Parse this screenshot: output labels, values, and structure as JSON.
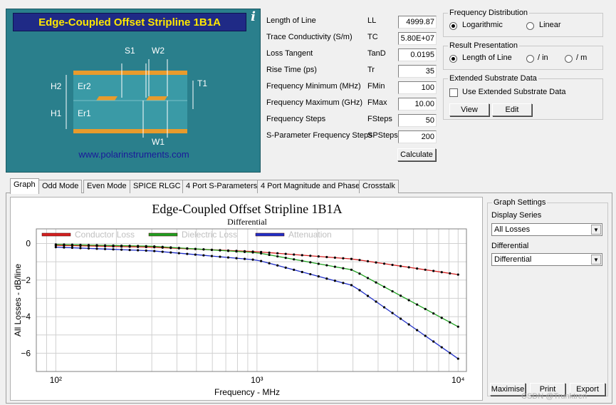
{
  "diagram": {
    "title": "Edge-Coupled Offset Stripline 1B1A",
    "info_glyph": "i",
    "url": "www.polarinstruments.com",
    "labels": {
      "s1": "S1",
      "w2": "W2",
      "t1": "T1",
      "h2": "H2",
      "er2": "Er2",
      "h1": "H1",
      "er1": "Er1",
      "w1": "W1"
    }
  },
  "params": [
    {
      "label": "Length of Line",
      "code": "LL",
      "value": "4999.87"
    },
    {
      "label": "Trace Conductivity (S/m)",
      "code": "TC",
      "value": "5.80E+07"
    },
    {
      "label": "Loss Tangent",
      "code": "TanD",
      "value": "0.0195"
    },
    {
      "label": "Rise Time (ps)",
      "code": "Tr",
      "value": "35"
    },
    {
      "label": "Frequency Minimum (MHz)",
      "code": "FMin",
      "value": "100"
    },
    {
      "label": "Frequency Maximum (GHz)",
      "code": "FMax",
      "value": "10.00"
    },
    {
      "label": "Frequency Steps",
      "code": "FSteps",
      "value": "50"
    },
    {
      "label": "S-Parameter Frequency Steps",
      "code": "SPSteps",
      "value": "200"
    }
  ],
  "calculate_label": "Calculate",
  "freq_distribution": {
    "title": "Frequency Distribution",
    "options": [
      "Logarithmic",
      "Linear"
    ],
    "selected": "Logarithmic"
  },
  "result_presentation": {
    "title": "Result Presentation",
    "options": [
      "Length of Line",
      "/ in",
      "/ m"
    ],
    "selected": "Length of Line"
  },
  "extended_substrate": {
    "title": "Extended Substrate Data",
    "checkbox_label": "Use Extended Substrate Data",
    "checked": false,
    "view_label": "View",
    "edit_label": "Edit"
  },
  "tabs": [
    "Graph",
    "Odd Mode",
    "Even Mode",
    "SPICE RLGC",
    "4 Port S-Parameters",
    "4 Port Magnitude and Phase",
    "Crosstalk"
  ],
  "active_tab": "Graph",
  "graph_settings": {
    "title": "Graph Settings",
    "display_series_label": "Display Series",
    "display_series_value": "All Losses",
    "differential_label": "Differential",
    "differential_value": "Differential",
    "buttons": [
      "Maximise",
      "Print",
      "Export"
    ]
  },
  "watermark": "CSDN @Trunktren",
  "chart_data": {
    "type": "line",
    "title": "Edge-Coupled Offset Stripline 1B1A",
    "subtitle": "Differential",
    "xlabel": "Frequency - MHz",
    "ylabel": "All Losses - dB/line",
    "x_scale": "log",
    "xlim": [
      80,
      11000
    ],
    "ylim": [
      -7,
      0.8
    ],
    "x_ticks": [
      100,
      1000,
      10000
    ],
    "x_tick_labels": [
      "10²",
      "10³",
      "10⁴"
    ],
    "y_ticks": [
      0,
      -2,
      -4,
      -6
    ],
    "grid": true,
    "legend_position": "top-left",
    "series": [
      {
        "name": "Conductor Loss",
        "color": "#d42020",
        "x": [
          100,
          300,
          1000,
          3000,
          10000
        ],
        "values": [
          -0.1,
          -0.2,
          -0.45,
          -0.85,
          -1.7
        ]
      },
      {
        "name": "Dielectric Loss",
        "color": "#1fa020",
        "x": [
          100,
          300,
          1000,
          3000,
          10000
        ],
        "values": [
          -0.05,
          -0.15,
          -0.5,
          -1.45,
          -4.55
        ]
      },
      {
        "name": "Attenuation",
        "color": "#2030c8",
        "x": [
          100,
          300,
          1000,
          3000,
          10000
        ],
        "values": [
          -0.2,
          -0.4,
          -0.9,
          -2.3,
          -6.3
        ]
      }
    ]
  }
}
